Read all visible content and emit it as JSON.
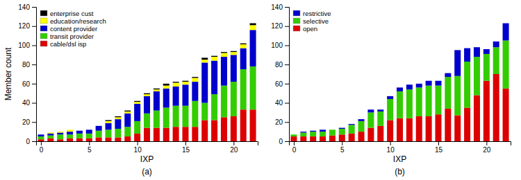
{
  "chart_data": [
    {
      "type": "bar",
      "stacked": true,
      "title": "(a)",
      "xlabel": "IXP",
      "ylabel": "Member count",
      "x": [
        0,
        1,
        2,
        3,
        4,
        5,
        6,
        7,
        8,
        9,
        10,
        11,
        12,
        13,
        14,
        15,
        16,
        17,
        18,
        19,
        20,
        21,
        22
      ],
      "xlim": [
        -0.5,
        22.5
      ],
      "xticks": [
        0,
        5,
        10,
        15,
        20
      ],
      "ylim": [
        0,
        140
      ],
      "yticks": [
        0,
        20,
        40,
        60,
        80,
        100,
        120,
        140
      ],
      "grid": false,
      "legend": "upper-left",
      "series": [
        {
          "name": "cable/dsl isp",
          "color": "#dd0000",
          "values": [
            2,
            3,
            2,
            3,
            3,
            3,
            4,
            4,
            4,
            5,
            8,
            14,
            14,
            14,
            15,
            15,
            15,
            22,
            22,
            25,
            26,
            33,
            33
          ]
        },
        {
          "name": "transit provider",
          "color": "#33cc00",
          "values": [
            3,
            3,
            5,
            4,
            5,
            5,
            7,
            8,
            9,
            10,
            13,
            15,
            18,
            21,
            22,
            22,
            27,
            18,
            27,
            33,
            36,
            42,
            45
          ]
        },
        {
          "name": "content provider",
          "color": "#0000cc",
          "values": [
            2,
            2,
            2,
            3,
            3,
            4,
            5,
            7,
            10,
            14,
            18,
            18,
            20,
            20,
            20,
            22,
            20,
            42,
            35,
            30,
            28,
            22,
            38
          ]
        },
        {
          "name": "education/research",
          "color": "#ffff00",
          "values": [
            0,
            1,
            1,
            2,
            0,
            0,
            0,
            2,
            2,
            2,
            2,
            2,
            2,
            3,
            4,
            3,
            4,
            3,
            4,
            4,
            3,
            4,
            5
          ]
        },
        {
          "name": "enterprise cust",
          "color": "#000000",
          "values": [
            0,
            0,
            0,
            0,
            0,
            0,
            0,
            1,
            1,
            1,
            1,
            1,
            1,
            2,
            1,
            1,
            1,
            2,
            1,
            1,
            1,
            1,
            2
          ]
        }
      ]
    },
    {
      "type": "bar",
      "stacked": true,
      "title": "(b)",
      "xlabel": "IXP",
      "x": [
        0,
        1,
        2,
        3,
        4,
        5,
        6,
        7,
        8,
        9,
        10,
        11,
        12,
        13,
        14,
        15,
        16,
        17,
        18,
        19,
        20,
        21,
        22
      ],
      "xlim": [
        -0.5,
        22.5
      ],
      "xticks": [
        0,
        5,
        10,
        15,
        20
      ],
      "ylim": [
        0,
        140
      ],
      "yticks": [
        0,
        20,
        40,
        60,
        80,
        100,
        120,
        140
      ],
      "grid": false,
      "legend": "upper-left",
      "series": [
        {
          "name": "open",
          "color": "#dd0000",
          "values": [
            5,
            5,
            5,
            5,
            6,
            7,
            8,
            10,
            14,
            16,
            22,
            24,
            24,
            26,
            26,
            28,
            34,
            27,
            35,
            48,
            63,
            70,
            55
          ]
        },
        {
          "name": "selective",
          "color": "#33cc00",
          "values": [
            2,
            4,
            5,
            5,
            6,
            6,
            9,
            11,
            16,
            15,
            22,
            28,
            30,
            30,
            32,
            30,
            33,
            41,
            48,
            40,
            28,
            28,
            50
          ]
        },
        {
          "name": "restrictive",
          "color": "#0000cc",
          "values": [
            0,
            1,
            1,
            2,
            0,
            1,
            1,
            2,
            3,
            2,
            3,
            4,
            5,
            4,
            5,
            5,
            4,
            27,
            14,
            10,
            5,
            6,
            18
          ]
        }
      ]
    }
  ]
}
